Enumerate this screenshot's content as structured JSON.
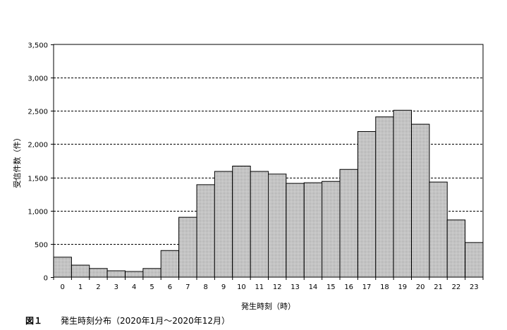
{
  "figure_label": "図１",
  "caption": "発生時刻分布（2020年1月～2020年12月）",
  "chart_data": {
    "type": "bar",
    "categories": [
      "0",
      "1",
      "2",
      "3",
      "4",
      "5",
      "6",
      "7",
      "8",
      "9",
      "10",
      "11",
      "12",
      "13",
      "14",
      "15",
      "16",
      "17",
      "18",
      "19",
      "20",
      "21",
      "22",
      "23"
    ],
    "values": [
      300,
      180,
      130,
      95,
      85,
      130,
      400,
      900,
      1390,
      1590,
      1670,
      1590,
      1550,
      1410,
      1420,
      1440,
      1620,
      2190,
      2410,
      2510,
      2300,
      1430,
      860,
      520
    ],
    "title": "",
    "xlabel": "発生時刻（時）",
    "ylabel": "受信件数（件）",
    "ylim": [
      0,
      3500
    ],
    "yticks": [
      0,
      500,
      1000,
      1500,
      2000,
      2500,
      3000,
      3500
    ],
    "ytick_labels": [
      "0",
      "500",
      "1,000",
      "1,500",
      "2,000",
      "2,500",
      "3,000",
      "3,500"
    ],
    "grid": true,
    "colors": {
      "bar_fill": "#c8c8c8",
      "bar_edge": "#000000",
      "grid": "#000000"
    }
  }
}
